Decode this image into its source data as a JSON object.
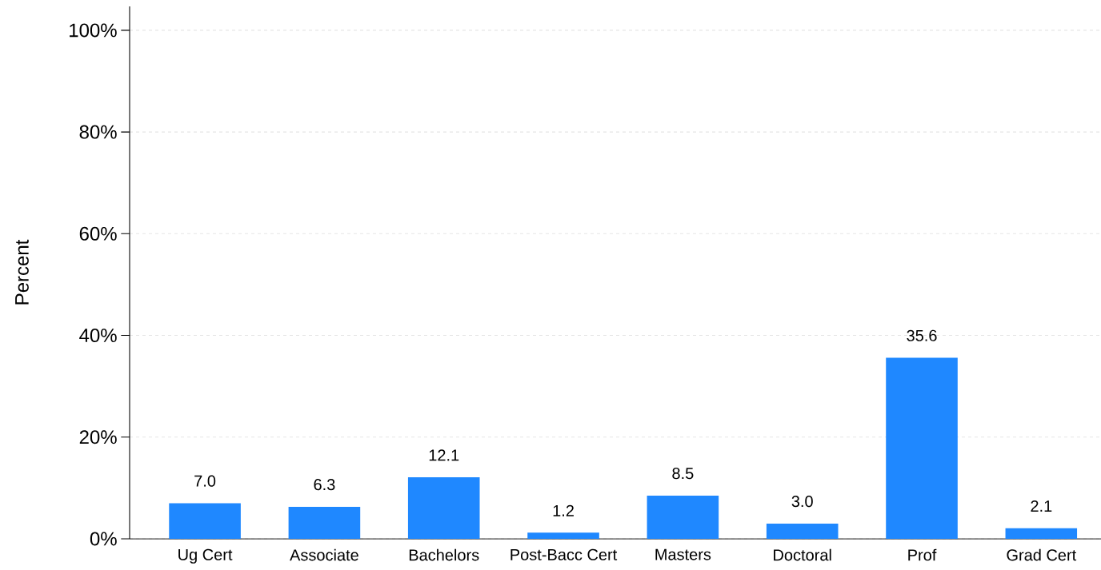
{
  "chart_data": {
    "type": "bar",
    "ylabel": "Percent",
    "categories": [
      "Ug Cert",
      "Associate",
      "Bachelors",
      "Post-Bacc Cert",
      "Masters",
      "Doctoral",
      "Prof",
      "Grad Cert"
    ],
    "values": [
      7.0,
      6.3,
      12.1,
      1.2,
      8.5,
      3.0,
      35.6,
      2.1
    ],
    "color": "#1f88ff",
    "ylim": [
      0,
      104.7
    ],
    "yticks": [
      {
        "value": 0,
        "label": "0%"
      },
      {
        "value": 20,
        "label": "20%"
      },
      {
        "value": 40,
        "label": "40%"
      },
      {
        "value": 60,
        "label": "60%"
      },
      {
        "value": 80,
        "label": "80%"
      },
      {
        "value": 100,
        "label": "100%"
      }
    ],
    "value_labels": [
      "7.0",
      "6.3",
      "12.1",
      "1.2",
      "8.5",
      "3.0",
      "35.6",
      "2.1"
    ],
    "grid": "y"
  }
}
